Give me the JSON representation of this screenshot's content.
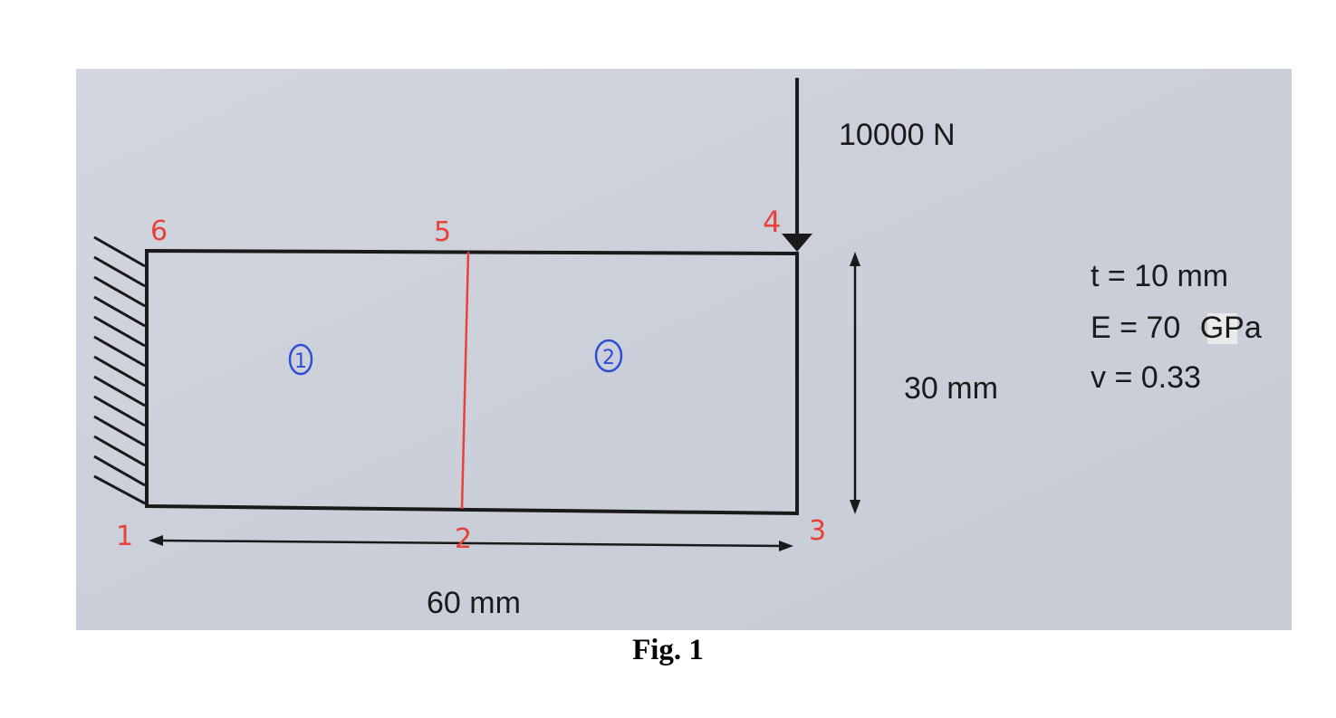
{
  "load": {
    "label": "10000 N"
  },
  "dimensions": {
    "height_label": "30 mm",
    "length_label": "60 mm"
  },
  "properties": [
    {
      "text": "t = 10 mm"
    },
    {
      "text_prefix": "E = 70 ",
      "text_highlight": "G",
      "text_suffix": "Pa"
    },
    {
      "text": "v = 0.33"
    }
  ],
  "nodes": [
    "1",
    "2",
    "3",
    "4",
    "5",
    "6"
  ],
  "elements": [
    "1",
    "2"
  ],
  "caption": "Fig. 1",
  "colors": {
    "paper": "#cfd3dc",
    "ink": "#1a1a1a",
    "node": "#e8403a",
    "element": "#2c4fd6"
  }
}
